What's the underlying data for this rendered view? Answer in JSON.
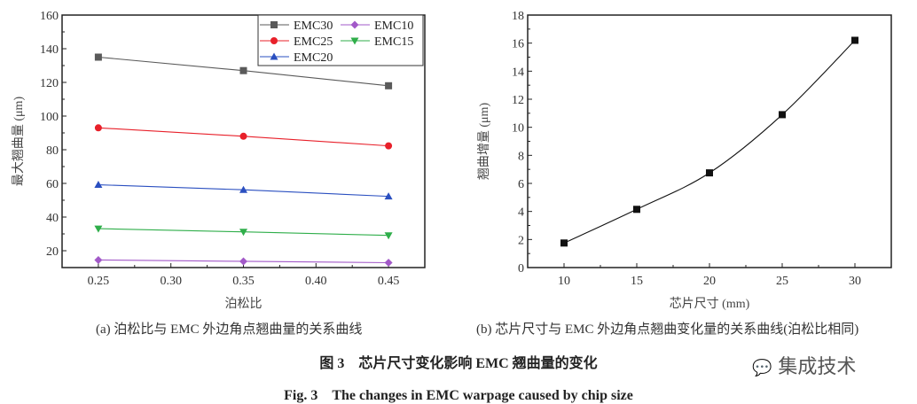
{
  "chart_data": [
    {
      "type": "line",
      "title": "",
      "xlabel": "泊松比",
      "ylabel": "最大翘曲量 (μm)",
      "x": [
        0.25,
        0.35,
        0.45
      ],
      "xlim": [
        0.225,
        0.475
      ],
      "ylim": [
        10,
        160
      ],
      "xticks": [
        "0.25",
        "0.30",
        "0.35",
        "0.40",
        "0.45"
      ],
      "yticks": [
        "20",
        "40",
        "60",
        "80",
        "100",
        "120",
        "140",
        "160"
      ],
      "legend_position": "top-right",
      "grid": false,
      "series": [
        {
          "name": "EMC30",
          "color": "#5a5a5a",
          "marker": "square",
          "values": [
            135,
            127,
            118
          ]
        },
        {
          "name": "EMC10",
          "color": "#a259c8",
          "marker": "diamond",
          "values": [
            14.5,
            13.7,
            12.9
          ]
        },
        {
          "name": "EMC25",
          "color": "#e8202a",
          "marker": "circle",
          "values": [
            93,
            88,
            82.3
          ]
        },
        {
          "name": "EMC15",
          "color": "#2fae4a",
          "marker": "triangle-down",
          "values": [
            33.1,
            31.2,
            29.1
          ]
        },
        {
          "name": "EMC20",
          "color": "#2a4fc0",
          "marker": "triangle-up",
          "values": [
            59.2,
            56.2,
            52.3
          ]
        }
      ],
      "caption": "(a) 泊松比与 EMC 外边角点翘曲量的关系曲线"
    },
    {
      "type": "line",
      "title": "",
      "xlabel": "芯片尺寸 (mm)",
      "ylabel": "翘曲增量 (μm)",
      "x": [
        10,
        15,
        20,
        25,
        30
      ],
      "xlim": [
        7.5,
        32.5
      ],
      "ylim": [
        0,
        18
      ],
      "xticks": [
        "10",
        "15",
        "20",
        "25",
        "30"
      ],
      "yticks": [
        "0",
        "2",
        "4",
        "6",
        "8",
        "10",
        "12",
        "14",
        "16",
        "18"
      ],
      "grid": false,
      "series": [
        {
          "name": "翘曲增量",
          "color": "#111111",
          "marker": "square",
          "values": [
            1.75,
            4.15,
            6.75,
            10.9,
            16.2
          ]
        }
      ],
      "caption": "(b) 芯片尺寸与 EMC 外边角点翘曲变化量的关系曲线(泊松比相同)"
    }
  ],
  "figure": {
    "title_cn": "图 3　芯片尺寸变化影响 EMC 翘曲量的变化",
    "title_en": "Fig. 3　The changes in EMC warpage caused by chip size"
  },
  "watermark": "集成技术"
}
